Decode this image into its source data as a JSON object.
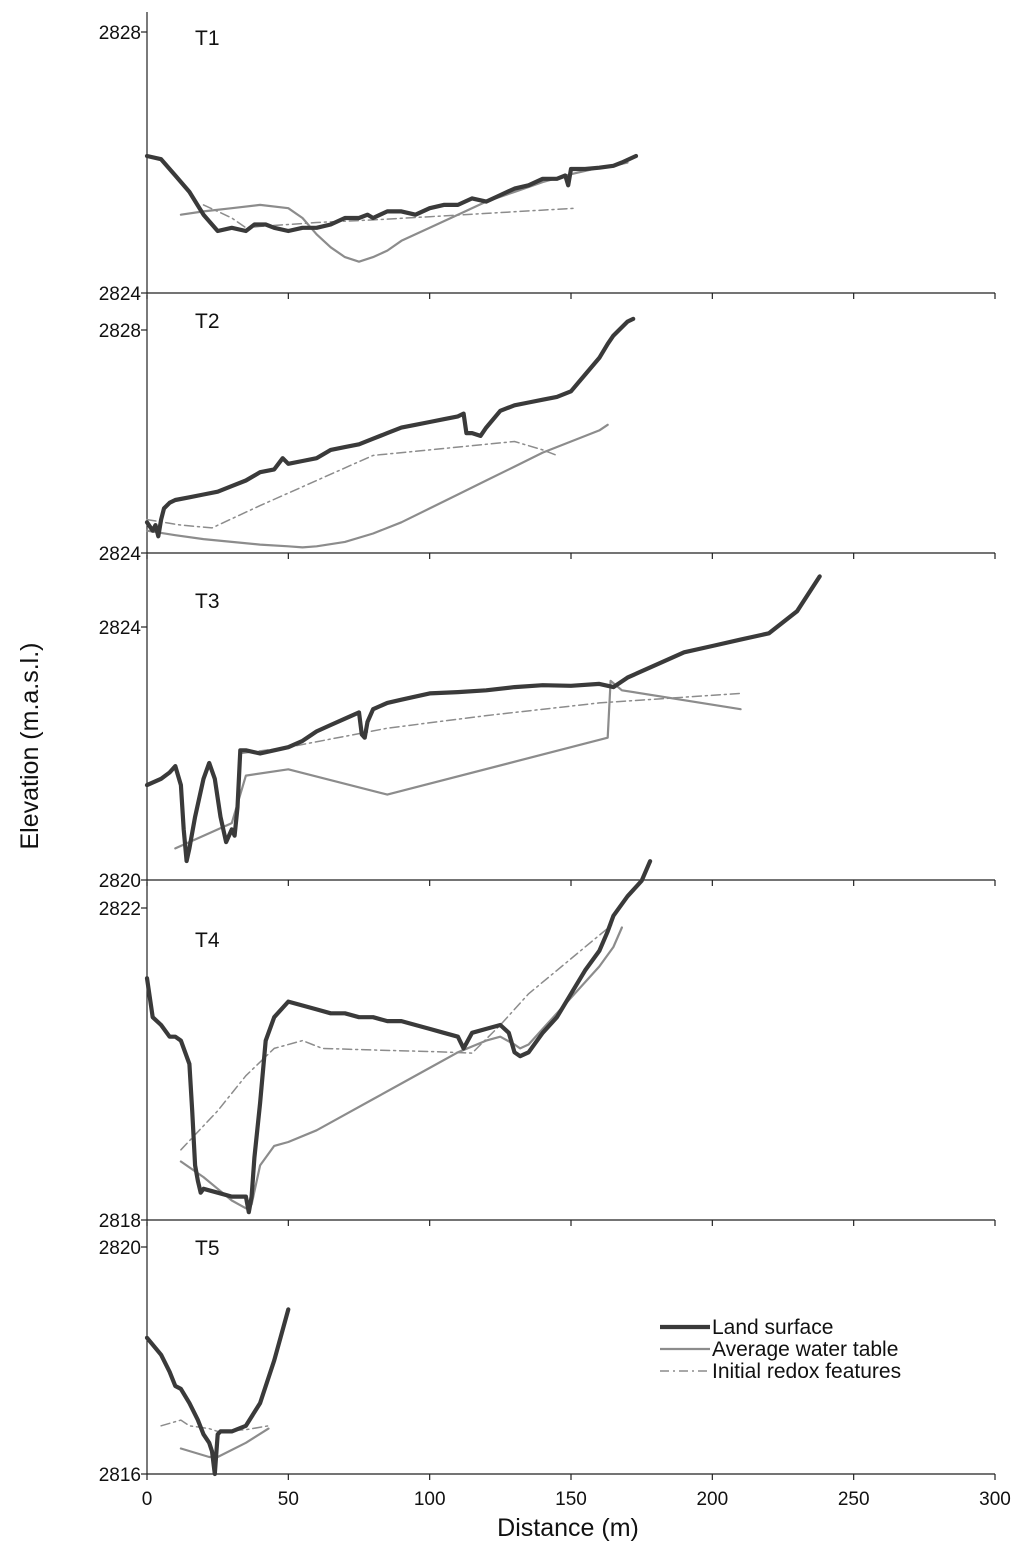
{
  "chart_data": {
    "type": "line",
    "xlabel": "Distance (m)",
    "ylabel": "Elevation (m.a.s.l.)",
    "xlim": [
      0,
      300
    ],
    "xticks": [
      0,
      50,
      100,
      150,
      200,
      250,
      300
    ],
    "grid": false,
    "legend": {
      "placement": "bottom-right",
      "entries": [
        "Land surface",
        "Average water table",
        "Initial redox features"
      ]
    },
    "colors": {
      "land_surface": "#3a3a3a",
      "water_table": "#8c8c8c",
      "redox": "#8c8c8c"
    },
    "panels": [
      {
        "label": "T1",
        "ylim": [
          2824,
          2828
        ],
        "yticks": [
          2824,
          2828
        ],
        "series": [
          {
            "name": "Land surface",
            "x": [
              0,
              5,
              10,
              15,
              20,
              25,
              30,
              35,
              38,
              42,
              45,
              50,
              55,
              60,
              65,
              70,
              75,
              78,
              80,
              85,
              90,
              95,
              100,
              105,
              110,
              115,
              120,
              125,
              130,
              135,
              140,
              145,
              148,
              149,
              150,
              155,
              160,
              165,
              168,
              173
            ],
            "y": [
              2826.1,
              2826.05,
              2825.8,
              2825.55,
              2825.2,
              2824.95,
              2825.0,
              2824.95,
              2825.05,
              2825.05,
              2825.0,
              2824.95,
              2825.0,
              2825.0,
              2825.05,
              2825.15,
              2825.15,
              2825.2,
              2825.15,
              2825.25,
              2825.25,
              2825.2,
              2825.3,
              2825.35,
              2825.35,
              2825.45,
              2825.4,
              2825.5,
              2825.6,
              2825.65,
              2825.75,
              2825.75,
              2825.8,
              2825.65,
              2825.9,
              2825.9,
              2825.92,
              2825.95,
              2826.0,
              2826.1
            ]
          },
          {
            "name": "Average water table",
            "x": [
              12,
              20,
              30,
              40,
              50,
              55,
              60,
              65,
              70,
              75,
              80,
              85,
              90,
              100,
              110,
              120,
              130,
              140,
              150,
              160,
              165,
              170
            ],
            "y": [
              2825.2,
              2825.25,
              2825.3,
              2825.35,
              2825.3,
              2825.15,
              2824.9,
              2824.7,
              2824.55,
              2824.48,
              2824.55,
              2824.65,
              2824.8,
              2825.0,
              2825.2,
              2825.4,
              2825.55,
              2825.7,
              2825.82,
              2825.92,
              2825.95,
              2826.0
            ]
          },
          {
            "name": "Initial redox features",
            "x": [
              20,
              25,
              30,
              35,
              40,
              50,
              60,
              80,
              100,
              120,
              140,
              152
            ],
            "y": [
              2825.35,
              2825.25,
              2825.15,
              2825.0,
              2825.02,
              2825.05,
              2825.08,
              2825.12,
              2825.17,
              2825.22,
              2825.27,
              2825.3
            ]
          }
        ]
      },
      {
        "label": "T2",
        "ylim": [
          2824,
          2828
        ],
        "yticks": [
          2824,
          2828
        ],
        "series": [
          {
            "name": "Land surface",
            "x": [
              0,
              2,
              3,
              4,
              5,
              6,
              8,
              10,
              15,
              20,
              25,
              30,
              35,
              40,
              45,
              48,
              50,
              55,
              60,
              65,
              70,
              75,
              80,
              85,
              90,
              95,
              100,
              105,
              110,
              112,
              113,
              115,
              118,
              120,
              125,
              130,
              135,
              140,
              145,
              150,
              155,
              160,
              163,
              165,
              170,
              172
            ],
            "y": [
              2824.55,
              2824.4,
              2824.5,
              2824.3,
              2824.6,
              2824.8,
              2824.9,
              2824.95,
              2825.0,
              2825.05,
              2825.1,
              2825.2,
              2825.3,
              2825.45,
              2825.5,
              2825.7,
              2825.6,
              2825.65,
              2825.7,
              2825.85,
              2825.9,
              2825.95,
              2826.05,
              2826.15,
              2826.25,
              2826.3,
              2826.35,
              2826.4,
              2826.45,
              2826.5,
              2826.15,
              2826.15,
              2826.1,
              2826.25,
              2826.55,
              2826.65,
              2826.7,
              2826.75,
              2826.8,
              2826.9,
              2827.2,
              2827.5,
              2827.75,
              2827.9,
              2828.15,
              2828.2
            ]
          },
          {
            "name": "Average water table",
            "x": [
              0,
              10,
              20,
              30,
              40,
              50,
              55,
              60,
              70,
              80,
              90,
              100,
              110,
              120,
              130,
              140,
              150,
              160,
              163
            ],
            "y": [
              2824.4,
              2824.32,
              2824.25,
              2824.2,
              2824.15,
              2824.12,
              2824.1,
              2824.12,
              2824.2,
              2824.35,
              2824.55,
              2824.8,
              2825.05,
              2825.3,
              2825.55,
              2825.8,
              2826.0,
              2826.2,
              2826.3
            ]
          },
          {
            "name": "Initial redox features",
            "x": [
              0,
              12,
              23,
              40,
              60,
              80,
              100,
              120,
              130,
              140,
              145
            ],
            "y": [
              2824.6,
              2824.5,
              2824.45,
              2824.85,
              2825.3,
              2825.75,
              2825.85,
              2825.95,
              2826.0,
              2825.85,
              2825.75
            ]
          }
        ]
      },
      {
        "label": "T3",
        "ylim": [
          2820,
          2825
        ],
        "yticks": [
          2820,
          2824
        ],
        "series": [
          {
            "name": "Land surface",
            "x": [
              0,
              5,
              8,
              10,
              12,
              13,
              14,
              15,
              17,
              20,
              22,
              24,
              26,
              28,
              30,
              31,
              32,
              33,
              35,
              40,
              45,
              50,
              55,
              60,
              65,
              70,
              75,
              76,
              77,
              78,
              80,
              85,
              90,
              95,
              100,
              110,
              120,
              130,
              140,
              150,
              160,
              165,
              170,
              180,
              190,
              200,
              210,
              220,
              230,
              238
            ],
            "y": [
              2821.5,
              2821.6,
              2821.7,
              2821.8,
              2821.5,
              2820.8,
              2820.3,
              2820.5,
              2821.0,
              2821.6,
              2821.85,
              2821.6,
              2821.0,
              2820.6,
              2820.8,
              2820.7,
              2821.15,
              2822.05,
              2822.05,
              2822.0,
              2822.05,
              2822.1,
              2822.2,
              2822.35,
              2822.45,
              2822.55,
              2822.65,
              2822.3,
              2822.25,
              2822.5,
              2822.7,
              2822.8,
              2822.85,
              2822.9,
              2822.95,
              2822.97,
              2823.0,
              2823.05,
              2823.08,
              2823.07,
              2823.1,
              2823.05,
              2823.2,
              2823.4,
              2823.6,
              2823.7,
              2823.8,
              2823.9,
              2824.25,
              2824.8
            ]
          },
          {
            "name": "Average water table",
            "x": [
              10,
              30,
              35,
              50,
              85,
              163,
              164,
              168,
              210
            ],
            "y": [
              2820.5,
              2820.9,
              2821.65,
              2821.75,
              2821.35,
              2822.25,
              2823.15,
              2823.0,
              2822.7
            ]
          },
          {
            "name": "Initial redox features",
            "x": [
              33,
              50,
              85,
              120,
              160,
              210
            ],
            "y": [
              2822.0,
              2822.1,
              2822.4,
              2822.6,
              2822.8,
              2822.95
            ]
          }
        ]
      },
      {
        "label": "T4",
        "ylim": [
          2818,
          2822.5
        ],
        "yticks": [
          2818,
          2822
        ],
        "series": [
          {
            "name": "Land surface",
            "x": [
              0,
              2,
              5,
              8,
              10,
              12,
              15,
              16,
              17,
              18,
              19,
              20,
              25,
              30,
              35,
              36,
              37,
              38,
              40,
              42,
              45,
              50,
              55,
              60,
              65,
              70,
              75,
              80,
              85,
              90,
              95,
              100,
              105,
              110,
              112,
              115,
              120,
              125,
              128,
              130,
              132,
              135,
              140,
              145,
              150,
              155,
              160,
              163,
              165,
              170,
              175,
              178
            ],
            "y": [
              2821.1,
              2820.6,
              2820.5,
              2820.35,
              2820.35,
              2820.3,
              2820.0,
              2819.4,
              2818.7,
              2818.5,
              2818.35,
              2818.4,
              2818.35,
              2818.3,
              2818.3,
              2818.1,
              2818.3,
              2818.8,
              2819.5,
              2820.3,
              2820.6,
              2820.8,
              2820.75,
              2820.7,
              2820.65,
              2820.65,
              2820.6,
              2820.6,
              2820.55,
              2820.55,
              2820.5,
              2820.45,
              2820.4,
              2820.35,
              2820.2,
              2820.4,
              2820.45,
              2820.5,
              2820.4,
              2820.15,
              2820.1,
              2820.15,
              2820.4,
              2820.6,
              2820.9,
              2821.2,
              2821.45,
              2821.7,
              2821.9,
              2822.15,
              2822.35,
              2822.6
            ]
          },
          {
            "name": "Average water table",
            "x": [
              12,
              20,
              25,
              30,
              35,
              37,
              40,
              45,
              50,
              60,
              70,
              80,
              90,
              100,
              110,
              120,
              125,
              130,
              132,
              135,
              140,
              150,
              160,
              165,
              168
            ],
            "y": [
              2818.75,
              2818.55,
              2818.4,
              2818.25,
              2818.15,
              2818.2,
              2818.7,
              2818.95,
              2819.0,
              2819.15,
              2819.35,
              2819.55,
              2819.75,
              2819.95,
              2820.15,
              2820.3,
              2820.35,
              2820.25,
              2820.2,
              2820.25,
              2820.45,
              2820.85,
              2821.25,
              2821.5,
              2821.75
            ]
          },
          {
            "name": "Initial redox features",
            "x": [
              12,
              25,
              35,
              45,
              55,
              62,
              80,
              100,
              115,
              125,
              135,
              145,
              155,
              165
            ],
            "y": [
              2818.9,
              2819.4,
              2819.85,
              2820.2,
              2820.3,
              2820.2,
              2820.18,
              2820.16,
              2820.14,
              2820.5,
              2820.9,
              2821.2,
              2821.5,
              2821.8
            ]
          }
        ]
      },
      {
        "label": "T5",
        "ylim": [
          2816,
          2820
        ],
        "yticks": [
          2816,
          2820
        ],
        "series": [
          {
            "name": "Land surface",
            "x": [
              0,
              5,
              8,
              10,
              12,
              15,
              18,
              20,
              22,
              23,
              24,
              25,
              26,
              28,
              30,
              35,
              40,
              45,
              50
            ],
            "y": [
              2818.4,
              2818.1,
              2817.8,
              2817.55,
              2817.5,
              2817.25,
              2816.95,
              2816.7,
              2816.55,
              2816.4,
              2816.0,
              2816.7,
              2816.75,
              2816.75,
              2816.75,
              2816.85,
              2817.25,
              2818.0,
              2818.9
            ]
          },
          {
            "name": "Average water table",
            "x": [
              12,
              22,
              25,
              35,
              43
            ],
            "y": [
              2816.45,
              2816.3,
              2816.3,
              2816.55,
              2816.8
            ]
          },
          {
            "name": "Initial redox features",
            "x": [
              5,
              12,
              15,
              22,
              25,
              35,
              43
            ],
            "y": [
              2816.85,
              2816.95,
              2816.85,
              2816.8,
              2816.75,
              2816.78,
              2816.85
            ]
          }
        ]
      }
    ]
  }
}
